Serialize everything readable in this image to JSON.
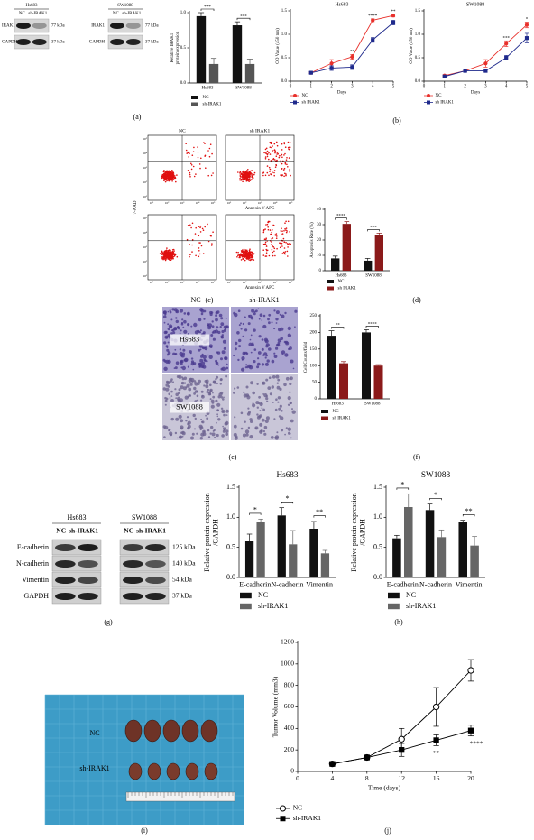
{
  "chart_data": [
    {
      "type": "bar",
      "y_label": [
        "Relative IRAK1",
        "protein expression"
      ],
      "categories": [
        "Hs683",
        "SW1088"
      ],
      "series": [
        {
          "name": "NC",
          "color": "#111111",
          "values": [
            0.95,
            0.82
          ],
          "errors": [
            0.05,
            0.05
          ]
        },
        {
          "name": "sh-IRAK1",
          "color": "#555555",
          "values": [
            0.27,
            0.27
          ],
          "errors": [
            0.08,
            0.07
          ]
        }
      ],
      "significance": [
        "***",
        "***"
      ],
      "ylim": [
        0,
        1.0
      ],
      "yticks": [
        {
          "value": 0,
          "label": "0.0"
        },
        {
          "value": 0.5,
          "label": "0.5"
        },
        {
          "value": 1.0,
          "label": "1.0"
        }
      ]
    },
    {
      "type": "line",
      "title": "Hs683",
      "x_label": "Days",
      "y_label": "OD Value (450 nm)",
      "x": [
        1,
        2,
        3,
        4,
        5
      ],
      "series": [
        {
          "name": "NC",
          "color": "#e8302b",
          "marker": "circle",
          "values": [
            0.18,
            0.38,
            0.52,
            1.3,
            1.4
          ],
          "errors": [
            0.02,
            0.08,
            0.05,
            0.03,
            0.03
          ]
        },
        {
          "name": "sh IRAK1",
          "color": "#1f2a8c",
          "marker": "square",
          "values": [
            0.18,
            0.28,
            0.3,
            0.88,
            1.25
          ],
          "errors": [
            0.02,
            0.05,
            0.05,
            0.05,
            0.05
          ]
        }
      ],
      "significance": [
        null,
        null,
        "**",
        "****",
        "**"
      ],
      "xlim": [
        0,
        5
      ],
      "xticks": [
        0,
        1,
        2,
        3,
        4,
        5
      ],
      "ylim": [
        0,
        1.5
      ],
      "yticks": [
        {
          "value": 0,
          "label": "0.0"
        },
        {
          "value": 0.5,
          "label": "0.5"
        },
        {
          "value": 1.0,
          "label": "1.0"
        },
        {
          "value": 1.5,
          "label": "1.5"
        }
      ]
    },
    {
      "type": "line",
      "title": "SW1088",
      "x_label": "Days",
      "y_label": "OD Value (450 nm)",
      "x": [
        1,
        2,
        3,
        4,
        5
      ],
      "series": [
        {
          "name": "NC",
          "color": "#e8302b",
          "marker": "circle",
          "values": [
            0.12,
            0.22,
            0.38,
            0.8,
            1.2
          ],
          "errors": [
            0.02,
            0.02,
            0.08,
            0.06,
            0.06
          ]
        },
        {
          "name": "sh IRAK1",
          "color": "#1f2a8c",
          "marker": "square",
          "values": [
            0.1,
            0.22,
            0.22,
            0.5,
            0.92
          ],
          "errors": [
            0.02,
            0.02,
            0.02,
            0.05,
            0.1
          ]
        }
      ],
      "significance": [
        null,
        null,
        null,
        "***",
        "*"
      ],
      "xlim": [
        0,
        5
      ],
      "xticks": [
        0,
        1,
        2,
        3,
        4,
        5
      ],
      "ylim": [
        0,
        1.5
      ],
      "yticks": [
        {
          "value": 0,
          "label": "0.0"
        },
        {
          "value": 0.5,
          "label": "0.5"
        },
        {
          "value": 1.0,
          "label": "1.0"
        },
        {
          "value": 1.5,
          "label": "1.5"
        }
      ]
    },
    {
      "type": "bar",
      "y_label": "Apoptosis Rate (%)",
      "categories": [
        "Hs683",
        "SW1088"
      ],
      "series": [
        {
          "name": "NC",
          "color": "#111111",
          "values": [
            8,
            6.5
          ],
          "errors": [
            1.5,
            1.5
          ]
        },
        {
          "name": "sh IRAK1",
          "color": "#8b1a1a",
          "values": [
            30.5,
            23
          ],
          "errors": [
            1.5,
            1.5
          ]
        }
      ],
      "significance": [
        "****",
        "***"
      ],
      "ylim": [
        0,
        40
      ],
      "yticks": [
        0,
        10,
        20,
        30,
        40
      ]
    },
    {
      "type": "bar",
      "y_label": "Cell Counts/field",
      "categories": [
        "Hs683",
        "SW1088"
      ],
      "series": [
        {
          "name": "NC",
          "color": "#111111",
          "values": [
            190,
            200
          ],
          "errors": [
            15,
            8
          ]
        },
        {
          "name": "sh IRAK1",
          "color": "#8b1a1a",
          "values": [
            107,
            100
          ],
          "errors": [
            5,
            3
          ]
        }
      ],
      "significance": [
        "**",
        "****"
      ],
      "ylim": [
        0,
        250
      ],
      "yticks": [
        0,
        50,
        100,
        150,
        200,
        250
      ]
    },
    {
      "type": "bar",
      "title": "Hs683",
      "y_label": [
        "Relative protein expression",
        "/GAPDH"
      ],
      "categories": [
        "E-cadherin",
        "N-cadherin",
        "Vimentin"
      ],
      "series": [
        {
          "name": "NC",
          "color": "#111111",
          "values": [
            0.6,
            1.03,
            0.81
          ],
          "errors": [
            0.12,
            0.13,
            0.12
          ]
        },
        {
          "name": "sh-IRAK1",
          "color": "#666666",
          "values": [
            0.93,
            0.55,
            0.4
          ],
          "errors": [
            0.04,
            0.23,
            0.05
          ]
        }
      ],
      "significance": [
        "*",
        "*",
        "**"
      ],
      "ylim": [
        0,
        1.5
      ],
      "yticks": [
        {
          "value": 0,
          "label": "0.0"
        },
        {
          "value": 0.5,
          "label": "0.5"
        },
        {
          "value": 1.0,
          "label": "1.0"
        },
        {
          "value": 1.5,
          "label": "1.5"
        }
      ]
    },
    {
      "type": "bar",
      "title": "SW1088",
      "y_label": [
        "Relative protein expression",
        "/GAPDH"
      ],
      "categories": [
        "E-cadherin",
        "N-cadherin",
        "Vimentin"
      ],
      "series": [
        {
          "name": "NC",
          "color": "#111111",
          "values": [
            0.65,
            1.12,
            0.93
          ],
          "errors": [
            0.05,
            0.1,
            0.02
          ]
        },
        {
          "name": "sh-IRAK1",
          "color": "#666666",
          "values": [
            1.17,
            0.67,
            0.53
          ],
          "errors": [
            0.22,
            0.12,
            0.15
          ]
        }
      ],
      "significance": [
        "*",
        "*",
        "**"
      ],
      "ylim": [
        0,
        1.5
      ],
      "yticks": [
        {
          "value": 0,
          "label": "0.0"
        },
        {
          "value": 0.5,
          "label": "0.5"
        },
        {
          "value": 1.0,
          "label": "1.0"
        },
        {
          "value": 1.5,
          "label": "1.5"
        }
      ]
    },
    {
      "type": "line",
      "x_label": "Time (days)",
      "y_label": "Tumor Volume (mm3)",
      "x": [
        4,
        8,
        12,
        16,
        20
      ],
      "series": [
        {
          "name": "NC",
          "color": "#000000",
          "marker": "open-circle",
          "values": [
            70,
            130,
            300,
            600,
            940
          ],
          "errors": [
            10,
            15,
            100,
            180,
            100
          ]
        },
        {
          "name": "sh-IRAK1",
          "color": "#000000",
          "marker": "square",
          "values": [
            70,
            130,
            200,
            290,
            380
          ],
          "errors": [
            10,
            15,
            60,
            50,
            50
          ]
        }
      ],
      "significance_below": [
        null,
        null,
        null,
        "**",
        "****"
      ],
      "xlim": [
        0,
        20
      ],
      "xticks": [
        0,
        4,
        8,
        12,
        16,
        20
      ],
      "ylim": [
        0,
        1200
      ],
      "yticks": [
        0,
        200,
        400,
        600,
        800,
        1000,
        1200
      ]
    }
  ],
  "blots_a": [
    {
      "cell": "Hs683",
      "lanes": [
        "NC",
        "sh-IRAK1"
      ],
      "rows": [
        {
          "protein": "IRAK1",
          "size": "77 kDa"
        },
        {
          "protein": "GAPDH",
          "size": "37 kDa"
        }
      ]
    },
    {
      "cell": "SW1088",
      "lanes": [
        "NC",
        "sh-IRAK1"
      ],
      "rows": [
        {
          "protein": "IRAK1",
          "size": "77 kDa"
        },
        {
          "protein": "GAPDH",
          "size": "37 kDa"
        }
      ]
    }
  ],
  "flow": {
    "columns": [
      "NC",
      "sh IRAK1"
    ],
    "rows": [
      "Hs683",
      "SW1088"
    ],
    "x_label": "Annexin V APC",
    "y_label": "7-AAD",
    "ticks": [
      "10¹",
      "10²",
      "10³",
      "10⁴",
      "10⁵"
    ]
  },
  "invasion": {
    "columns": [
      "NC",
      "sh-IRAK1"
    ],
    "rows": [
      "Hs683",
      "SW1088"
    ]
  },
  "blots_g": {
    "cells": [
      "Hs683",
      "SW1088"
    ],
    "lanes": [
      "NC",
      "sh-IRAK1"
    ],
    "rows": [
      {
        "protein": "E-cadherin",
        "size": "125 kDa"
      },
      {
        "protein": "N-cadherin",
        "size": "140 kDa"
      },
      {
        "protein": "Vimentin",
        "size": "54 kDa"
      },
      {
        "protein": "GAPDH",
        "size": "37 kDa"
      }
    ]
  },
  "tumor": {
    "rows": [
      "NC",
      "sh-IRAK1"
    ]
  },
  "panel_labels": [
    "(a)",
    "(b)",
    "(c)",
    "(d)",
    "(e)",
    "(f)",
    "(g)",
    "(h)",
    "(i)",
    "(j)"
  ]
}
